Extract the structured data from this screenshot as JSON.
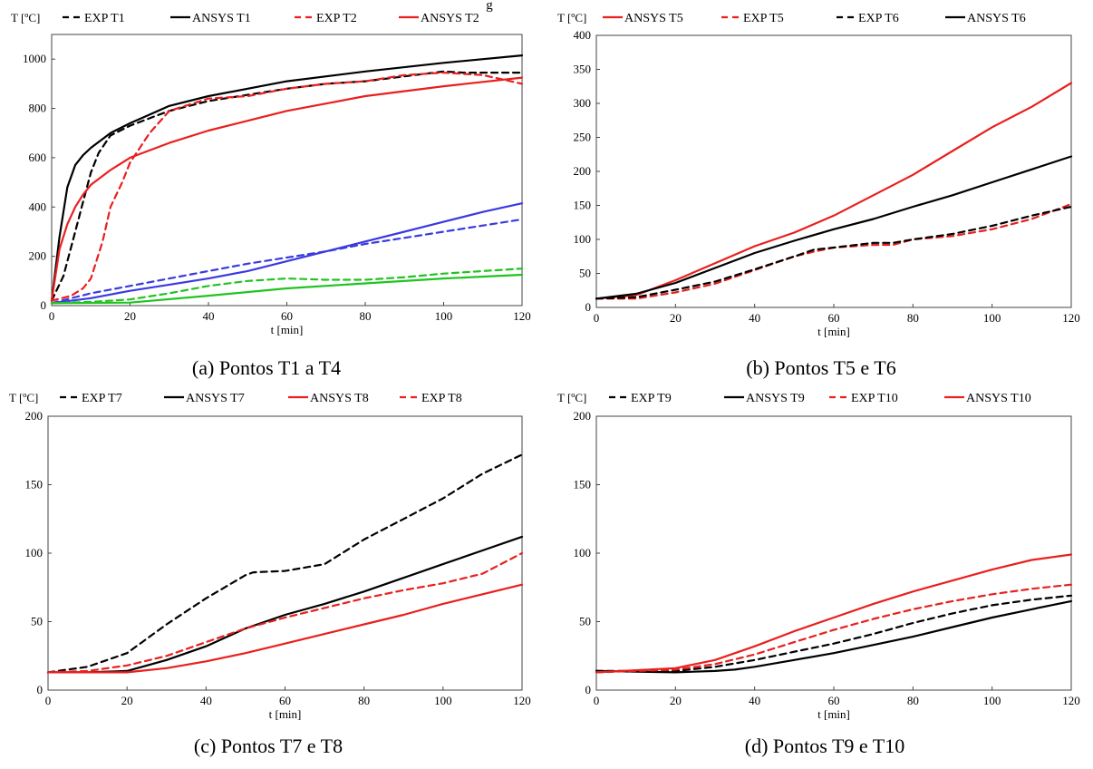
{
  "figure": {
    "colors": {
      "black": "#000000",
      "red": "#e8201e",
      "blue": "#3a3ae0",
      "green": "#21c321"
    },
    "caption_top": "g"
  },
  "chart_data": [
    {
      "id": "a",
      "type": "line",
      "caption": "(a) Pontos T1 a T4",
      "xlabel": "t [min]",
      "ylabel": "T [ºC]",
      "xlim": [
        0,
        120
      ],
      "ylim": [
        0,
        1100
      ],
      "xticks": [
        0,
        20,
        40,
        60,
        80,
        100,
        120
      ],
      "yticks": [
        0,
        200,
        400,
        600,
        800,
        1000
      ],
      "legend_entries": [
        "EXP T1",
        "ANSYS T1",
        "EXP T2",
        "ANSYS T2"
      ],
      "series": [
        {
          "name": "ANSYS T1",
          "color": "black",
          "dash": false,
          "x": [
            0,
            2,
            4,
            6,
            8,
            10,
            15,
            20,
            30,
            40,
            60,
            80,
            100,
            120
          ],
          "y": [
            20,
            280,
            480,
            570,
            610,
            640,
            700,
            740,
            810,
            850,
            910,
            950,
            985,
            1015
          ]
        },
        {
          "name": "EXP T1",
          "color": "black",
          "dash": true,
          "x": [
            0,
            3,
            6,
            8,
            10,
            12,
            15,
            20,
            25,
            30,
            40,
            50,
            60,
            70,
            80,
            90,
            100,
            105,
            110,
            120
          ],
          "y": [
            20,
            120,
            300,
            420,
            540,
            620,
            690,
            730,
            760,
            790,
            830,
            855,
            880,
            900,
            910,
            930,
            950,
            945,
            945,
            945
          ]
        },
        {
          "name": "ANSYS T2",
          "color": "red",
          "dash": false,
          "x": [
            0,
            2,
            4,
            6,
            8,
            10,
            15,
            20,
            30,
            40,
            60,
            80,
            100,
            120
          ],
          "y": [
            20,
            230,
            330,
            400,
            450,
            490,
            550,
            600,
            660,
            710,
            790,
            850,
            890,
            925
          ]
        },
        {
          "name": "EXP T2",
          "color": "red",
          "dash": true,
          "x": [
            0,
            5,
            8,
            10,
            13,
            15,
            18,
            20,
            25,
            30,
            40,
            50,
            60,
            70,
            80,
            90,
            100,
            110,
            120
          ],
          "y": [
            20,
            40,
            70,
            110,
            260,
            400,
            500,
            580,
            700,
            790,
            840,
            850,
            880,
            900,
            910,
            935,
            945,
            935,
            900
          ]
        },
        {
          "color": "blue",
          "dash": false,
          "x": [
            0,
            10,
            20,
            30,
            40,
            50,
            60,
            70,
            80,
            90,
            100,
            110,
            120
          ],
          "y": [
            10,
            30,
            60,
            85,
            110,
            140,
            180,
            220,
            260,
            300,
            340,
            380,
            415
          ]
        },
        {
          "color": "blue",
          "dash": true,
          "x": [
            0,
            10,
            20,
            30,
            40,
            50,
            60,
            70,
            80,
            90,
            100,
            110,
            120
          ],
          "y": [
            10,
            50,
            80,
            110,
            140,
            170,
            195,
            220,
            250,
            275,
            300,
            325,
            350
          ]
        },
        {
          "color": "green",
          "dash": false,
          "x": [
            0,
            20,
            40,
            60,
            80,
            100,
            120
          ],
          "y": [
            10,
            12,
            40,
            70,
            90,
            110,
            125
          ]
        },
        {
          "color": "green",
          "dash": true,
          "x": [
            0,
            10,
            20,
            30,
            40,
            50,
            60,
            70,
            80,
            90,
            100,
            110,
            120
          ],
          "y": [
            10,
            15,
            25,
            50,
            80,
            100,
            110,
            105,
            105,
            115,
            130,
            140,
            150
          ]
        }
      ]
    },
    {
      "id": "b",
      "type": "line",
      "caption": "(b) Pontos T5 e T6",
      "xlabel": "t [min]",
      "ylabel": "T [ºC]",
      "xlim": [
        0,
        120
      ],
      "ylim": [
        0,
        400
      ],
      "xticks": [
        0,
        20,
        40,
        60,
        80,
        100,
        120
      ],
      "yticks": [
        0,
        50,
        100,
        150,
        200,
        250,
        300,
        350,
        400
      ],
      "legend_entries": [
        "ANSYS T5",
        "EXP T5",
        "EXP T6",
        "ANSYS T6"
      ],
      "series": [
        {
          "name": "ANSYS T5",
          "color": "red",
          "dash": false,
          "x": [
            0,
            10,
            20,
            30,
            40,
            50,
            60,
            70,
            80,
            90,
            100,
            110,
            120
          ],
          "y": [
            13,
            18,
            40,
            65,
            90,
            110,
            135,
            165,
            195,
            230,
            265,
            295,
            330
          ]
        },
        {
          "name": "EXP T5",
          "color": "red",
          "dash": true,
          "x": [
            0,
            10,
            20,
            30,
            40,
            50,
            55,
            60,
            70,
            75,
            80,
            90,
            100,
            110,
            120
          ],
          "y": [
            13,
            13,
            22,
            35,
            55,
            75,
            82,
            88,
            92,
            92,
            100,
            105,
            115,
            130,
            152
          ]
        },
        {
          "name": "EXP T6",
          "color": "black",
          "dash": true,
          "x": [
            0,
            10,
            20,
            30,
            40,
            50,
            55,
            60,
            70,
            75,
            80,
            90,
            100,
            110,
            120
          ],
          "y": [
            13,
            15,
            26,
            38,
            56,
            75,
            85,
            88,
            95,
            95,
            100,
            108,
            120,
            135,
            148
          ]
        },
        {
          "name": "ANSYS T6",
          "color": "black",
          "dash": false,
          "x": [
            0,
            10,
            20,
            30,
            40,
            50,
            60,
            70,
            80,
            90,
            100,
            110,
            120
          ],
          "y": [
            13,
            20,
            36,
            58,
            80,
            98,
            115,
            130,
            148,
            165,
            184,
            203,
            222
          ]
        }
      ]
    },
    {
      "id": "c",
      "type": "line",
      "caption": "(c) Pontos T7 e T8",
      "xlabel": "t [min]",
      "ylabel": "T [ºC]",
      "xlim": [
        0,
        120
      ],
      "ylim": [
        0,
        200
      ],
      "xticks": [
        0,
        20,
        40,
        60,
        80,
        100,
        120
      ],
      "yticks": [
        0,
        50,
        100,
        150,
        200
      ],
      "legend_entries": [
        "EXP T7",
        "ANSYS T7",
        "ANSYS T8",
        "EXP T8"
      ],
      "series": [
        {
          "name": "EXP T7",
          "color": "black",
          "dash": true,
          "x": [
            0,
            10,
            20,
            30,
            40,
            50,
            52,
            60,
            70,
            80,
            90,
            100,
            110,
            120
          ],
          "y": [
            13,
            17,
            27,
            48,
            67,
            84,
            86,
            87,
            92,
            110,
            125,
            140,
            158,
            172
          ]
        },
        {
          "name": "ANSYS T7",
          "color": "black",
          "dash": false,
          "x": [
            0,
            10,
            20,
            30,
            40,
            50,
            60,
            70,
            80,
            90,
            100,
            110,
            120
          ],
          "y": [
            13,
            13,
            14,
            22,
            32,
            45,
            55,
            63,
            72,
            82,
            92,
            102,
            112
          ]
        },
        {
          "name": "ANSYS T8",
          "color": "red",
          "dash": false,
          "x": [
            0,
            10,
            20,
            30,
            40,
            50,
            60,
            70,
            80,
            90,
            100,
            110,
            120
          ],
          "y": [
            13,
            13,
            13,
            16,
            21,
            27,
            34,
            41,
            48,
            55,
            63,
            70,
            77
          ]
        },
        {
          "name": "EXP T8",
          "color": "red",
          "dash": true,
          "x": [
            0,
            10,
            20,
            30,
            40,
            50,
            60,
            70,
            80,
            90,
            100,
            110,
            120
          ],
          "y": [
            13,
            14,
            18,
            25,
            35,
            45,
            53,
            60,
            67,
            73,
            78,
            85,
            100
          ]
        }
      ]
    },
    {
      "id": "d",
      "type": "line",
      "caption": "(d) Pontos T9 e T10",
      "xlabel": "t [min]",
      "ylabel": "T [ºC]",
      "xlim": [
        0,
        120
      ],
      "ylim": [
        0,
        200
      ],
      "xticks": [
        0,
        20,
        40,
        60,
        80,
        100,
        120
      ],
      "yticks": [
        0,
        50,
        100,
        150,
        200
      ],
      "legend_entries": [
        "EXP T9",
        "ANSYS T9",
        "EXP T10",
        "ANSYS T10"
      ],
      "series": [
        {
          "name": "EXP T9",
          "color": "black",
          "dash": true,
          "x": [
            0,
            20,
            30,
            40,
            50,
            60,
            70,
            80,
            90,
            100,
            110,
            120
          ],
          "y": [
            14,
            14,
            17,
            22,
            28,
            34,
            41,
            49,
            56,
            62,
            66,
            69
          ]
        },
        {
          "name": "ANSYS T9",
          "color": "black",
          "dash": false,
          "x": [
            0,
            20,
            30,
            35,
            40,
            50,
            60,
            70,
            80,
            90,
            100,
            110,
            120
          ],
          "y": [
            14,
            13,
            14,
            15,
            17,
            22,
            27,
            33,
            39,
            46,
            53,
            59,
            65
          ]
        },
        {
          "name": "EXP T10",
          "color": "red",
          "dash": true,
          "x": [
            0,
            20,
            30,
            40,
            50,
            60,
            70,
            80,
            90,
            100,
            110,
            120
          ],
          "y": [
            13,
            15,
            19,
            26,
            35,
            44,
            52,
            59,
            65,
            70,
            74,
            77
          ]
        },
        {
          "name": "ANSYS T10",
          "color": "red",
          "dash": false,
          "x": [
            0,
            20,
            30,
            40,
            50,
            60,
            70,
            80,
            90,
            100,
            110,
            120
          ],
          "y": [
            13,
            16,
            22,
            32,
            43,
            53,
            63,
            72,
            80,
            88,
            95,
            99
          ]
        }
      ]
    }
  ]
}
